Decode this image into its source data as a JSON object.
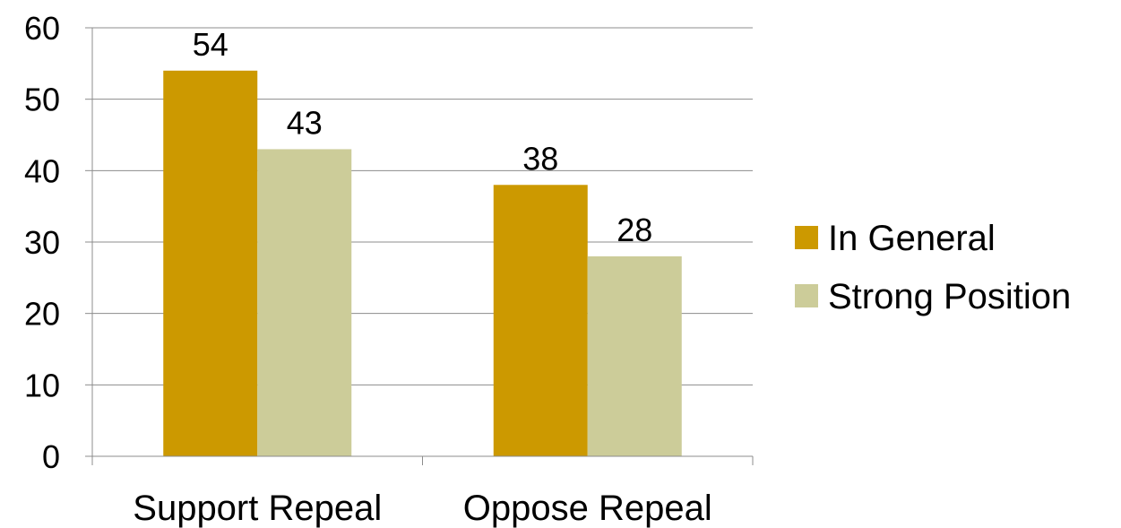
{
  "chart_data": {
    "type": "bar",
    "title": "",
    "xlabel": "",
    "ylabel": "",
    "categories": [
      "Support Repeal",
      "Oppose Repeal"
    ],
    "series": [
      {
        "name": "In General",
        "values": [
          54,
          38
        ],
        "color": "#CC9900"
      },
      {
        "name": "Strong Position",
        "values": [
          43,
          28
        ],
        "color": "#CCCC99"
      }
    ],
    "ylim": [
      0,
      60
    ],
    "yticks": [
      0,
      10,
      20,
      30,
      40,
      50,
      60
    ],
    "grid": true,
    "legend_position": "right",
    "data_labels": true
  }
}
